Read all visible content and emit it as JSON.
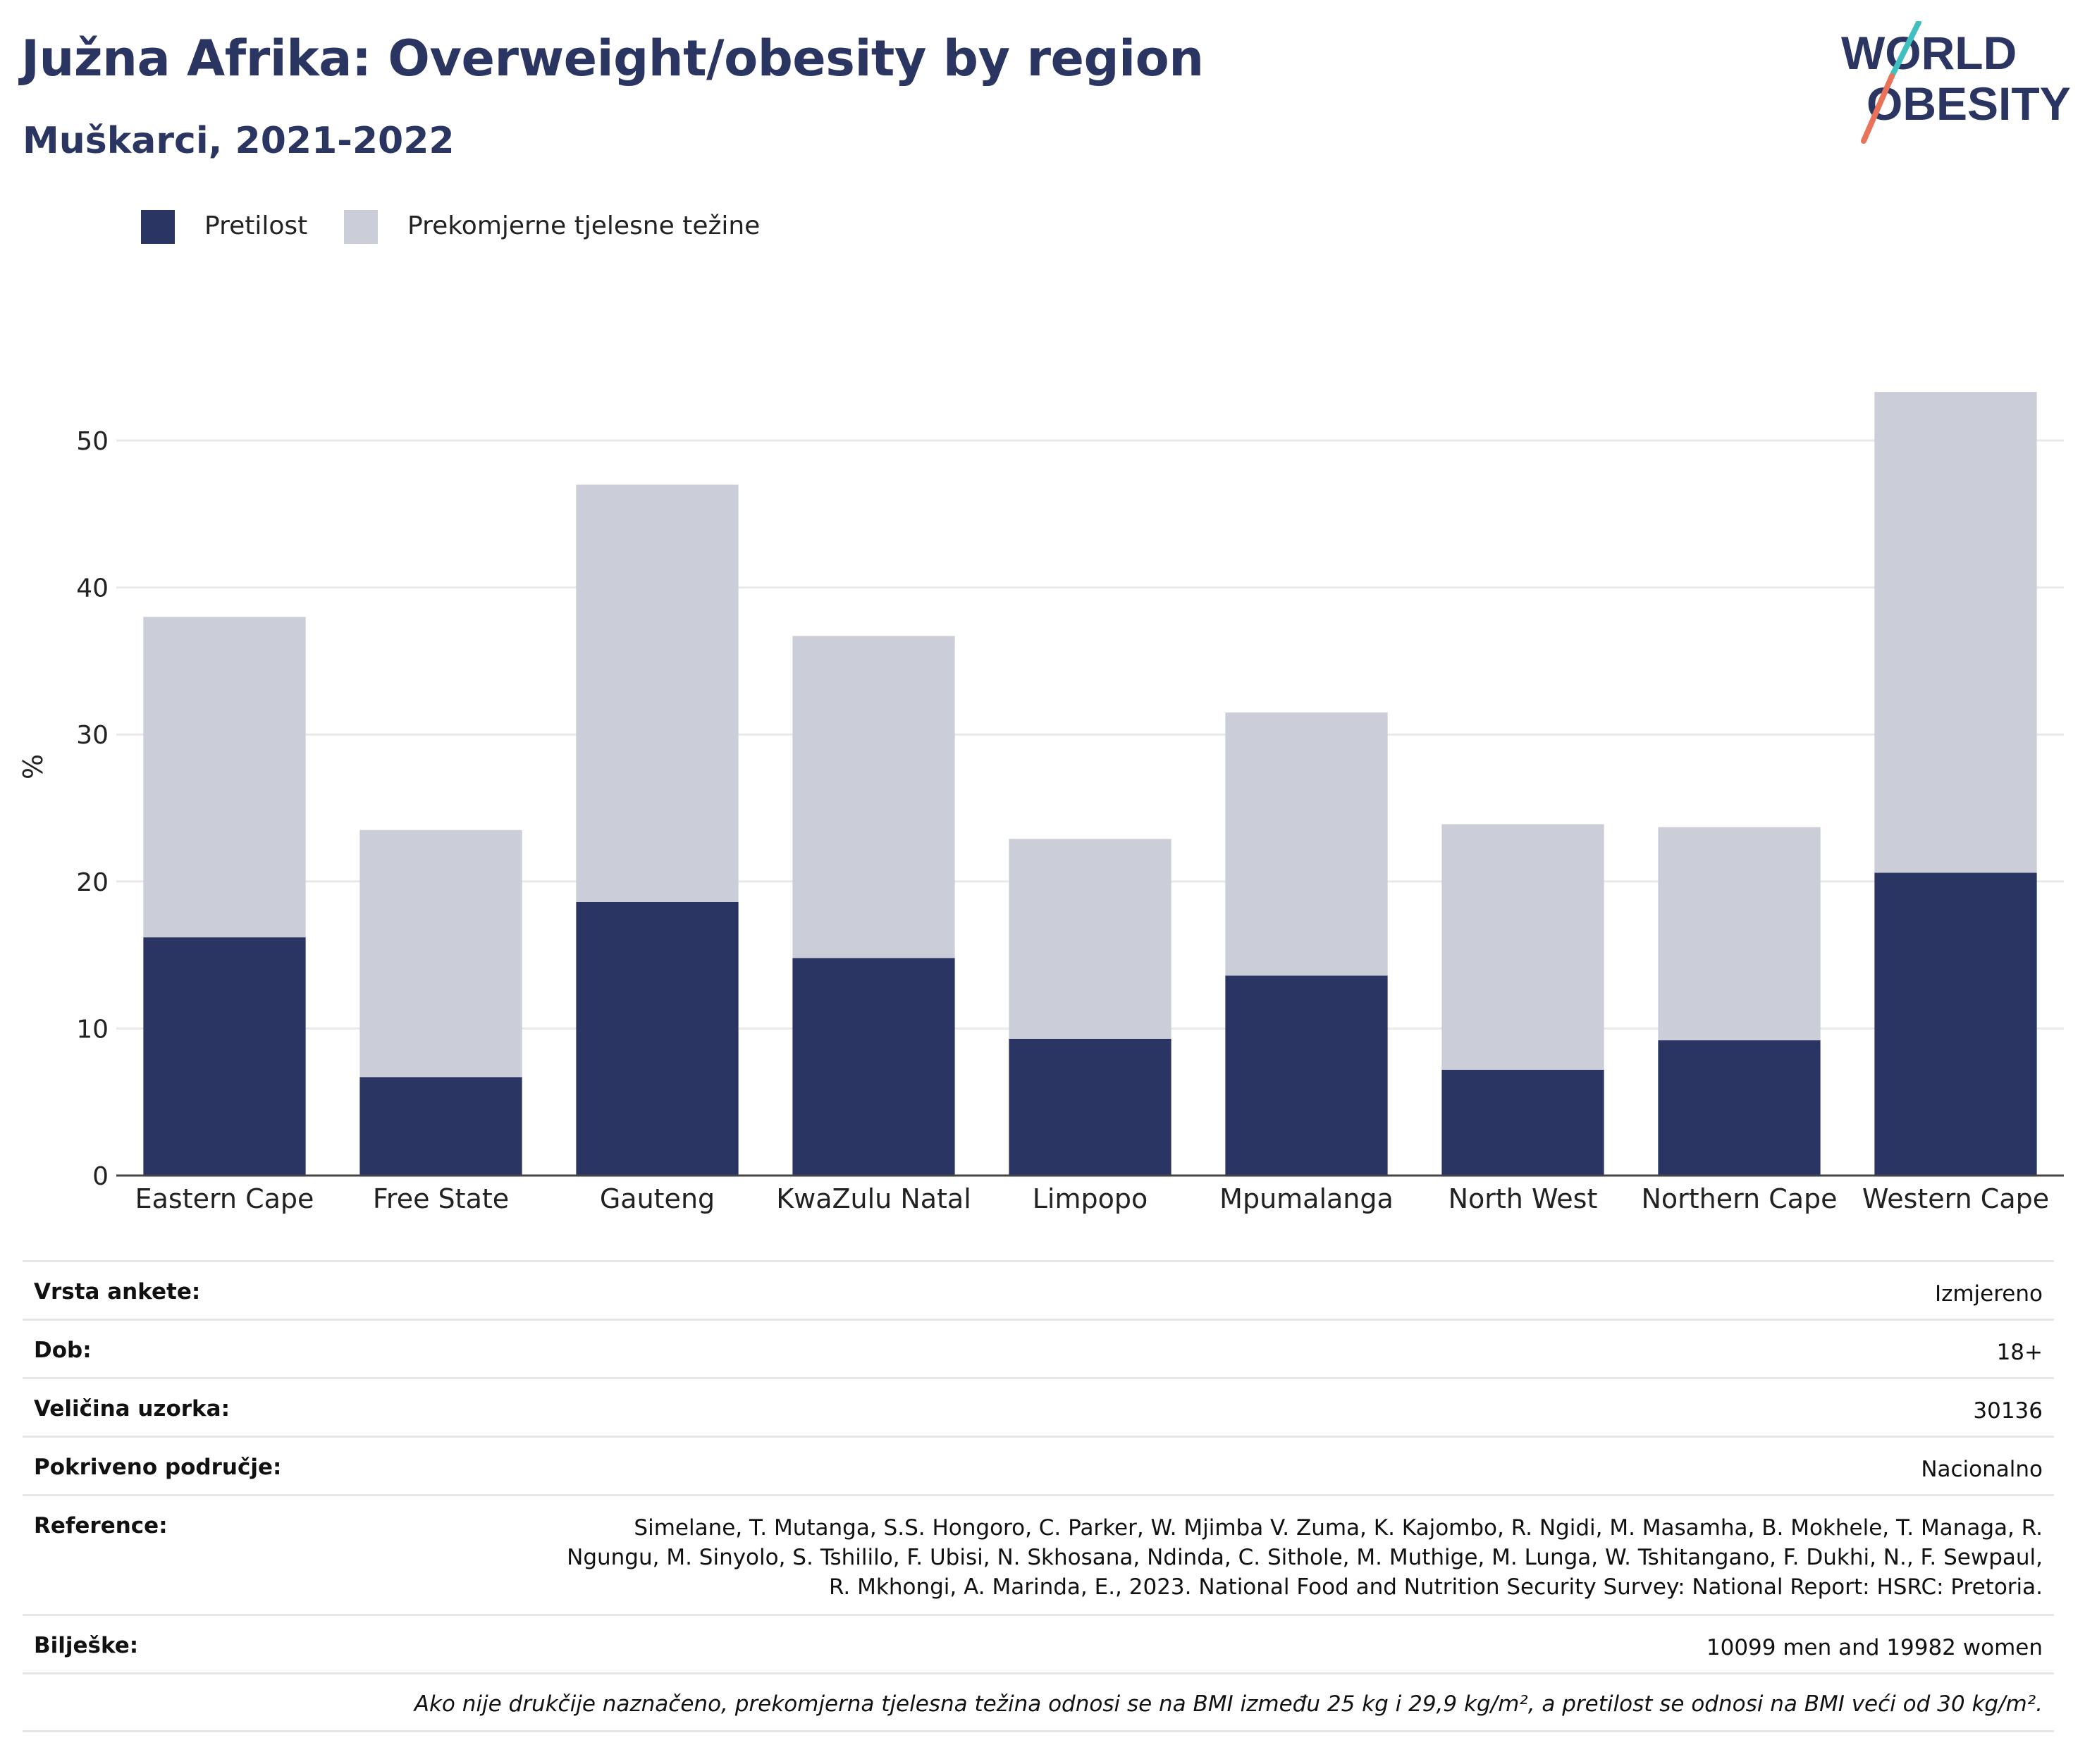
{
  "header": {
    "title": "Južna Afrika: Overweight/obesity by region",
    "subtitle": "Muškarci, 2021-2022"
  },
  "logo": {
    "line1": "WORLD",
    "line2": "OBESITY"
  },
  "colors": {
    "obesity": "#2b3563",
    "overweight": "#cbcdd8",
    "title": "#2b3561",
    "logo_teal": "#3fbfbf",
    "logo_red": "#e8735a"
  },
  "chart_data": {
    "type": "bar",
    "stacked": true,
    "categories": [
      "Eastern Cape",
      "Free State",
      "Gauteng",
      "KwaZulu Natal",
      "Limpopo",
      "Mpumalanga",
      "North West",
      "Northern Cape",
      "Western Cape"
    ],
    "series": [
      {
        "name": "Pretilost",
        "color": "#2b3563",
        "values": [
          16.2,
          6.7,
          18.6,
          14.8,
          9.3,
          13.6,
          7.2,
          9.2,
          20.6
        ]
      },
      {
        "name": "Prekomjerne tjelesne težine",
        "color": "#cbcdd8",
        "values": [
          21.8,
          16.8,
          28.4,
          21.9,
          13.6,
          17.9,
          16.7,
          14.5,
          32.7
        ]
      }
    ],
    "ylabel": "%",
    "ylim": [
      0,
      55
    ],
    "yticks": [
      0,
      10,
      20,
      30,
      40,
      50
    ],
    "grid": true,
    "legend_position": "top-left"
  },
  "info": {
    "survey_type_label": "Vrsta ankete:",
    "survey_type": "Izmjereno",
    "age_label": "Dob:",
    "age": "18+",
    "sample_label": "Veličina uzorka:",
    "sample": "30136",
    "coverage_label": "Pokriveno područje:",
    "coverage": "Nacionalno",
    "reference_label": "Reference:",
    "reference_line1": "Simelane, T. Mutanga, S.S. Hongoro, C. Parker, W. Mjimba V. Zuma, K. Kajombo, R. Ngidi, M. Masamha, B. Mokhele, T. Managa, R.",
    "reference_line2": "Ngungu, M. Sinyolo, S. Tshililo, F. Ubisi, N. Skhosana, Ndinda, C. Sithole, M. Muthige, M. Lunga, W. Tshitangano, F. Dukhi, N., F. Sewpaul,",
    "reference_line3": "R. Mkhongi, A. Marinda, E., 2023. National Food and Nutrition Security Survey: National Report: HSRC: Pretoria.",
    "notes_label": "Bilješke:",
    "notes": "10099 men and 19982 women",
    "footnote": "Ako nije drukčije naznačeno, prekomjerna tjelesna težina odnosi se na BMI između 25 kg i 29,9 kg/m², a pretilost se odnosi na BMI veći od 30 kg/m²."
  }
}
